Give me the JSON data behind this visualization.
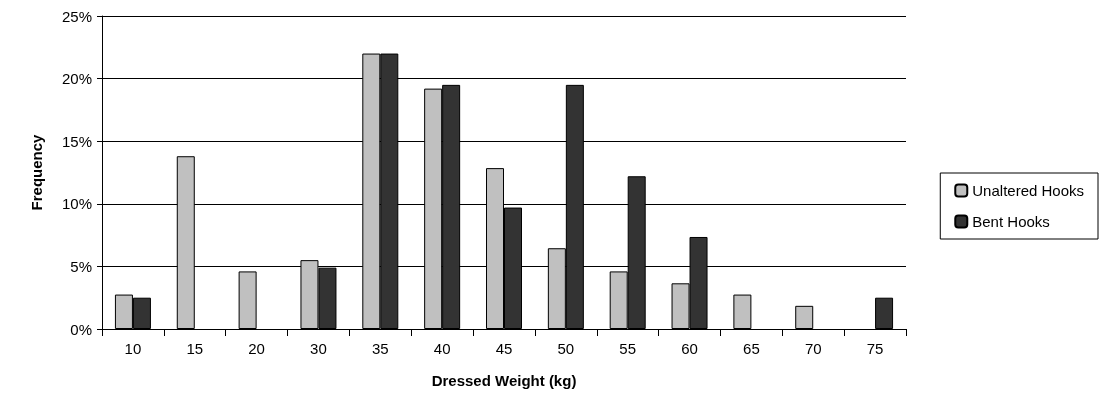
{
  "chart_data": {
    "type": "bar",
    "xlabel": "Dressed Weight (kg)",
    "ylabel": "Frequency",
    "categories": [
      "10",
      "15",
      "20",
      "30",
      "35",
      "40",
      "45",
      "50",
      "55",
      "60",
      "65",
      "70",
      "75"
    ],
    "series": [
      {
        "name": "Unaltered Hooks",
        "color": "#c0c0c0",
        "values": [
          2.75,
          13.8,
          4.6,
          5.5,
          22.0,
          19.2,
          12.85,
          6.45,
          4.6,
          3.65,
          2.75,
          1.85,
          null
        ]
      },
      {
        "name": "Bent Hooks",
        "color": "#333333",
        "values": [
          2.5,
          null,
          null,
          4.9,
          22.0,
          19.5,
          9.7,
          19.5,
          12.2,
          7.35,
          null,
          null,
          2.5
        ]
      }
    ],
    "ylim": [
      0,
      25
    ],
    "yticks": [
      {
        "value": 0,
        "label": "0%"
      },
      {
        "value": 5,
        "label": "5%"
      },
      {
        "value": 10,
        "label": "10%"
      },
      {
        "value": 15,
        "label": "15%"
      },
      {
        "value": 20,
        "label": "20%"
      },
      {
        "value": 25,
        "label": "25%"
      }
    ],
    "grid": "y",
    "legend": "right"
  }
}
